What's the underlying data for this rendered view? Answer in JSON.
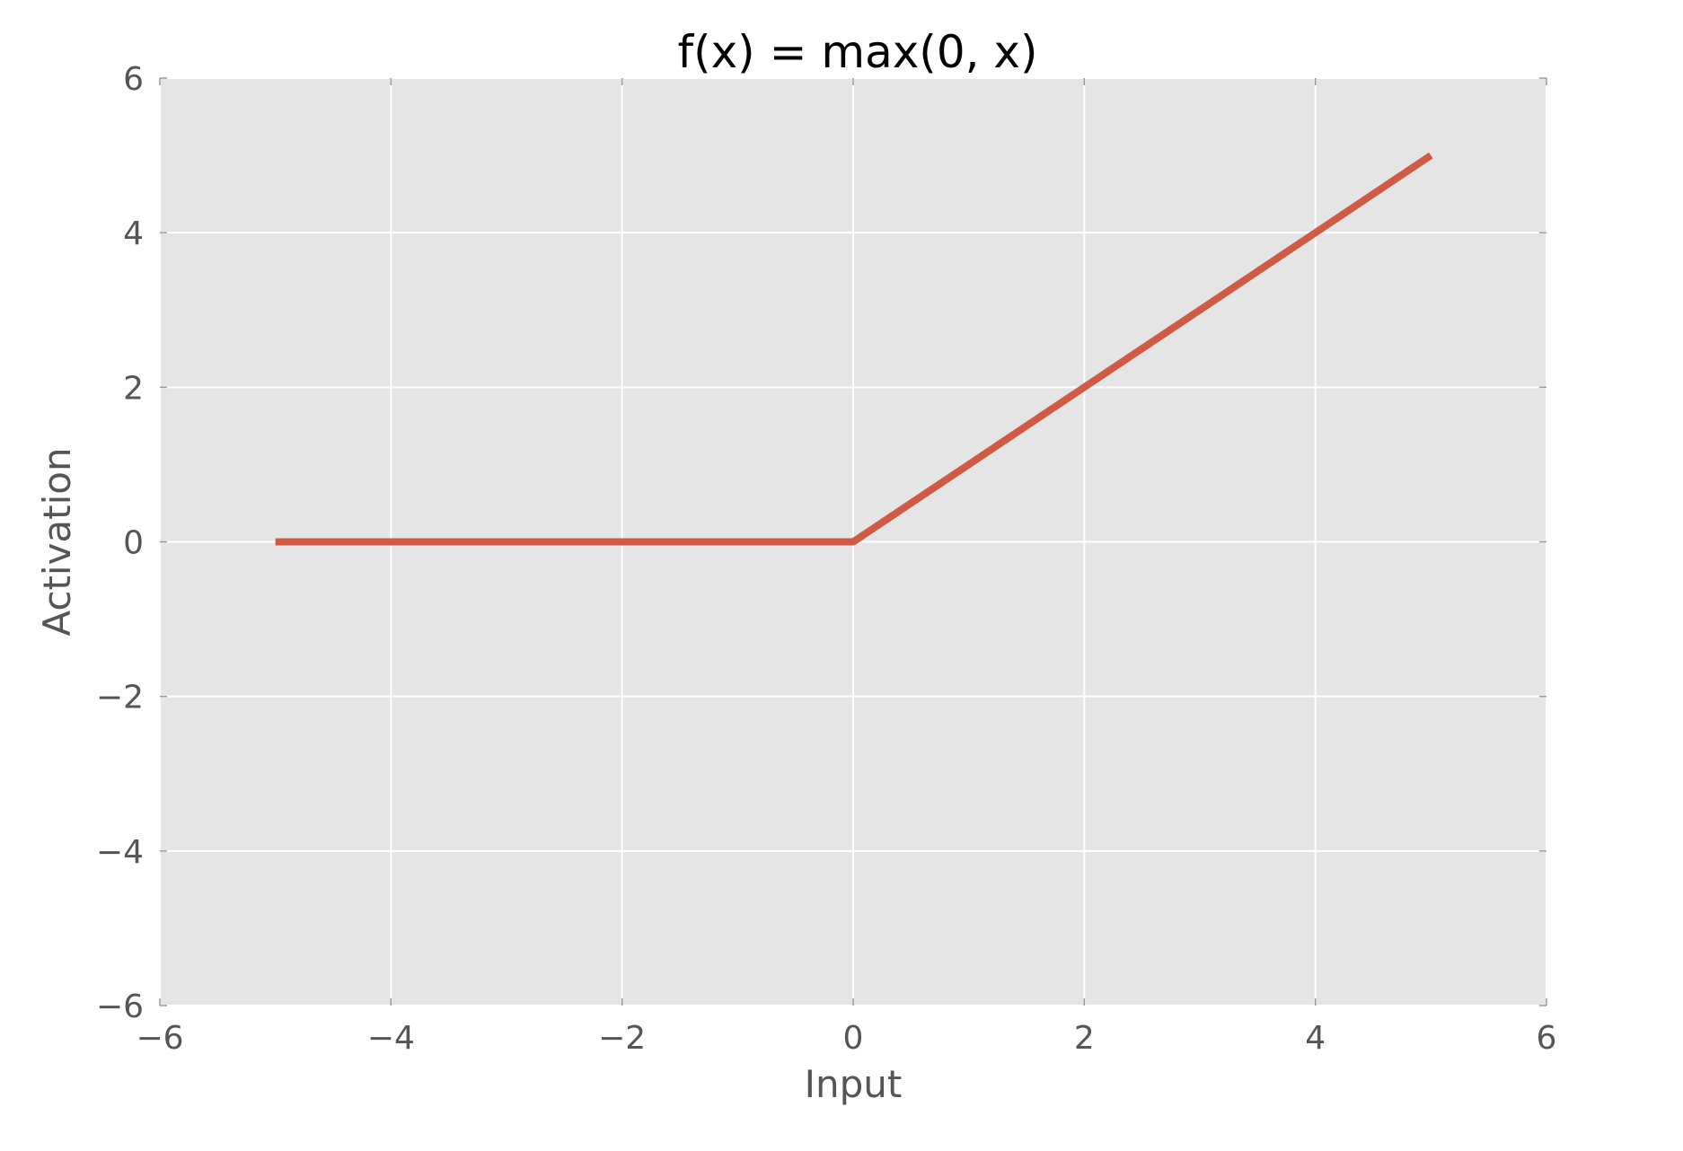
{
  "chart_data": {
    "type": "line",
    "title": "f(x) = max(0, x)",
    "xlabel": "Input",
    "ylabel": "Activation",
    "xlim": [
      -6,
      6
    ],
    "ylim": [
      -6,
      6
    ],
    "xticks": [
      -6,
      -4,
      -2,
      0,
      2,
      4,
      6
    ],
    "yticks": [
      -6,
      -4,
      -2,
      0,
      2,
      4,
      6
    ],
    "xtick_labels": [
      "−6",
      "−4",
      "−2",
      "0",
      "2",
      "4",
      "6"
    ],
    "ytick_labels": [
      "−6",
      "−4",
      "−2",
      "0",
      "2",
      "4",
      "6"
    ],
    "grid": true,
    "series": [
      {
        "x": [
          -5,
          -4,
          -3,
          -2,
          -1,
          0,
          1,
          2,
          3,
          4,
          5
        ],
        "y": [
          0,
          0,
          0,
          0,
          0,
          0,
          1,
          2,
          3,
          4,
          5
        ]
      }
    ]
  },
  "colors": {
    "plot_background": "#e5e5e5",
    "grid": "#ffffff",
    "line": "#d05a43",
    "tick_mark": "#999999",
    "tick_text": "#555555"
  }
}
